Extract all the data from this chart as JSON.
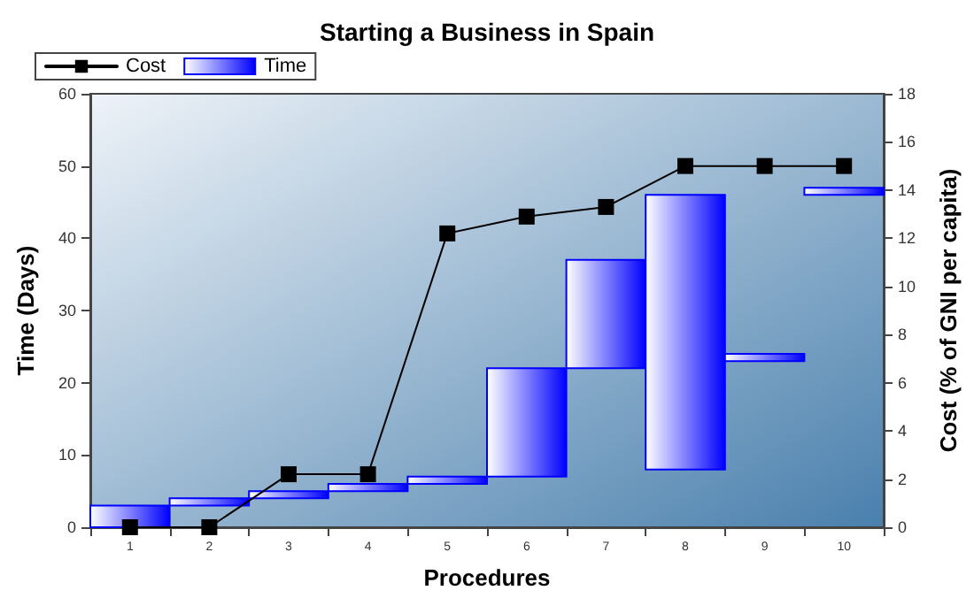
{
  "chart_data": {
    "type": "bar",
    "title": "Starting a Business in Spain",
    "xlabel": "Procedures",
    "ylabel": "Time (Days)",
    "y2label": "Cost (% of GNI per capita)",
    "categories": [
      "1",
      "2",
      "3",
      "4",
      "5",
      "6",
      "7",
      "8",
      "9",
      "10"
    ],
    "series": [
      {
        "name": "Cost",
        "type": "line",
        "axis": "y2",
        "color": "#000000",
        "marker": "square",
        "values": [
          0,
          0,
          2.2,
          2.2,
          12.2,
          12.9,
          13.3,
          15,
          15,
          15
        ]
      },
      {
        "name": "Time",
        "color": "#0000ff",
        "base": [
          0,
          3,
          4,
          5,
          6,
          7,
          22,
          8,
          23,
          46
        ],
        "values": [
          3,
          1,
          1,
          1,
          1,
          15,
          15,
          38,
          1,
          1
        ]
      }
    ],
    "ylim": [
      0,
      60
    ],
    "yticks": [
      0,
      10,
      20,
      30,
      40,
      50,
      60
    ],
    "y2lim": [
      0,
      18
    ],
    "y2ticks": [
      0,
      2,
      4,
      6,
      8,
      10,
      12,
      14,
      16,
      18
    ],
    "grid": false,
    "legend": "top left"
  }
}
